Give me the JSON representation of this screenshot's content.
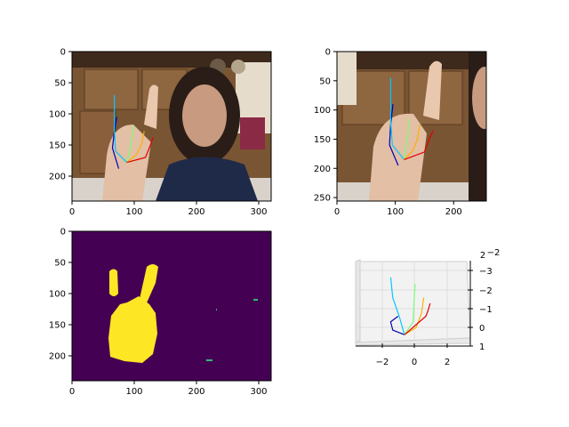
{
  "colors": {
    "mask_background": "#440154",
    "mask_foreground": "#fde725",
    "mask_speck": "#35b779",
    "thumb": "#0000b4",
    "index": "#00c8ff",
    "middle": "#7cff79",
    "ring": "#ffb000",
    "pinky": "#e00000"
  },
  "chart_data": [
    {
      "id": "rgb-frame",
      "type": "image",
      "xlim": [
        0,
        320
      ],
      "ylim": [
        240,
        0
      ],
      "xticks": [
        0,
        100,
        200,
        300
      ],
      "yticks": [
        0,
        50,
        100,
        150,
        200
      ],
      "hand_2d": {
        "thumb": [
          [
            75,
            188
          ],
          [
            65,
            155
          ],
          [
            68,
            128
          ],
          [
            72,
            105
          ]
        ],
        "index": [
          [
            88,
            178
          ],
          [
            70,
            160
          ],
          [
            68,
            125
          ],
          [
            68,
            95
          ],
          [
            68,
            70
          ]
        ],
        "middle": [
          [
            88,
            178
          ],
          [
            92,
            162
          ],
          [
            96,
            142
          ],
          [
            98,
            118
          ]
        ],
        "ring": [
          [
            88,
            178
          ],
          [
            104,
            165
          ],
          [
            112,
            148
          ],
          [
            116,
            128
          ]
        ],
        "pinky": [
          [
            88,
            178
          ],
          [
            118,
            170
          ],
          [
            126,
            150
          ],
          [
            130,
            138
          ]
        ]
      }
    },
    {
      "id": "cropped-frame",
      "type": "image",
      "xlim": [
        0,
        256
      ],
      "ylim": [
        256,
        0
      ],
      "xticks": [
        0,
        100,
        200
      ],
      "yticks": [
        0,
        50,
        100,
        150,
        200,
        250
      ],
      "hand_2d": {
        "thumb": [
          [
            105,
            195
          ],
          [
            90,
            160
          ],
          [
            92,
            125
          ],
          [
            96,
            90
          ]
        ],
        "index": [
          [
            115,
            185
          ],
          [
            95,
            160
          ],
          [
            92,
            120
          ],
          [
            92,
            80
          ],
          [
            92,
            45
          ]
        ],
        "middle": [
          [
            115,
            185
          ],
          [
            118,
            162
          ],
          [
            122,
            140
          ],
          [
            124,
            115
          ]
        ],
        "ring": [
          [
            115,
            185
          ],
          [
            130,
            170
          ],
          [
            138,
            150
          ],
          [
            142,
            125
          ]
        ],
        "pinky": [
          [
            115,
            185
          ],
          [
            150,
            172
          ],
          [
            158,
            150
          ],
          [
            165,
            135
          ]
        ]
      }
    },
    {
      "id": "segmentation-mask",
      "type": "heatmap",
      "xlim": [
        0,
        320
      ],
      "ylim": [
        240,
        0
      ],
      "xticks": [
        0,
        100,
        200,
        300
      ],
      "yticks": [
        0,
        50,
        100,
        150,
        200
      ]
    },
    {
      "id": "hand-3d",
      "type": "line3d",
      "xticks": [
        "−2",
        "0",
        "2"
      ],
      "zticks": [
        "−3",
        "−2",
        "−1",
        "0",
        "1"
      ],
      "yticks": [
        "2",
        "−2"
      ],
      "hand_3d": {
        "thumb": [
          [
            0,
            0.4
          ],
          [
            -0.55,
            0.15
          ],
          [
            -0.65,
            -0.3
          ],
          [
            -0.3,
            -0.6
          ]
        ],
        "index": [
          [
            0,
            0.4
          ],
          [
            -0.25,
            -0.6
          ],
          [
            -0.55,
            -1.6
          ],
          [
            -0.65,
            -2.7
          ]
        ],
        "middle": [
          [
            0,
            0.4
          ],
          [
            0.4,
            -0.3
          ],
          [
            0.45,
            -1.5
          ],
          [
            0.5,
            -2.35
          ]
        ],
        "ring": [
          [
            0,
            0.4
          ],
          [
            0.55,
            0.0
          ],
          [
            0.8,
            -0.8
          ],
          [
            0.9,
            -1.6
          ]
        ],
        "pinky": [
          [
            0,
            0.4
          ],
          [
            1.0,
            -0.6
          ],
          [
            1.1,
            -0.9
          ],
          [
            1.2,
            -1.3
          ]
        ]
      }
    }
  ]
}
